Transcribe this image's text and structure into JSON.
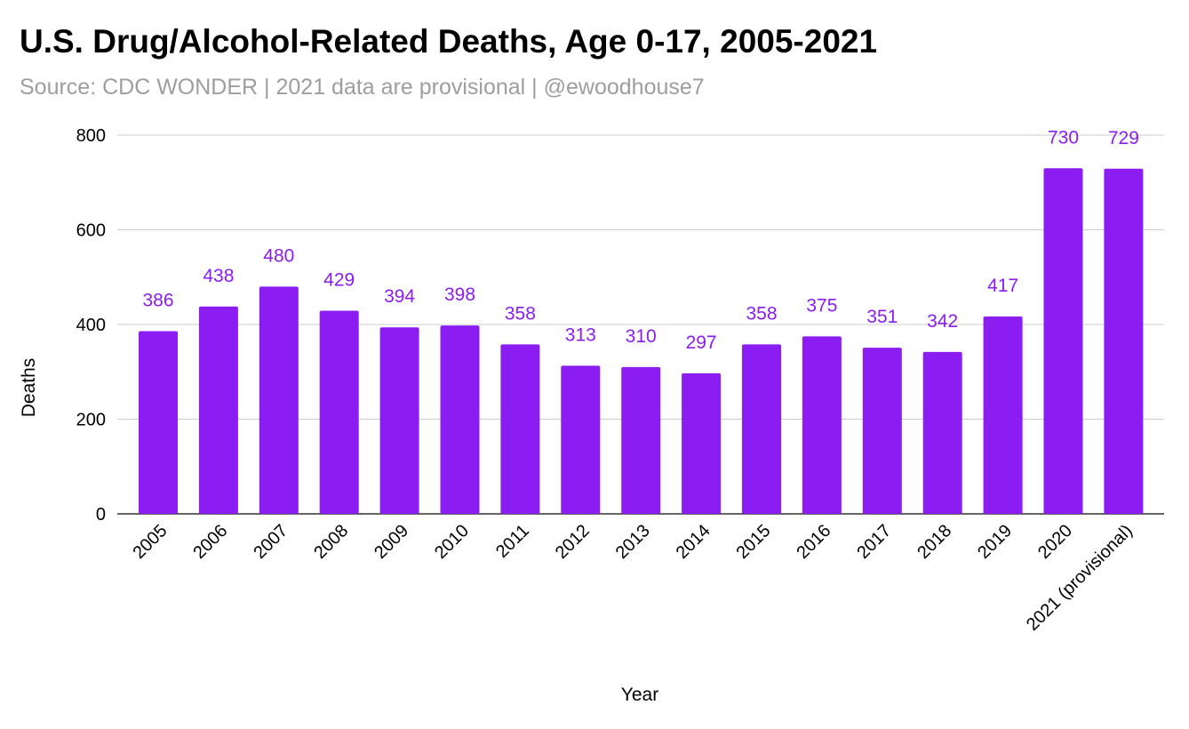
{
  "colors": {
    "bar": "#8b1cf2",
    "data_label": "#8b1cf2",
    "grid": "#cccccc",
    "baseline": "#333333",
    "title": "#000000",
    "subtitle": "#9e9e9e"
  },
  "chart_data": {
    "type": "bar",
    "title": "U.S. Drug/Alcohol-Related Deaths, Age 0-17, 2005-2021",
    "subtitle": "Source: CDC WONDER | 2021 data are provisional | @ewoodhouse7",
    "xlabel": "Year",
    "ylabel": "Deaths",
    "ylim": [
      0,
      800
    ],
    "yticks": [
      0,
      200,
      400,
      600,
      800
    ],
    "grid": true,
    "categories": [
      "2005",
      "2006",
      "2007",
      "2008",
      "2009",
      "2010",
      "2011",
      "2012",
      "2013",
      "2014",
      "2015",
      "2016",
      "2017",
      "2018",
      "2019",
      "2020",
      "2021 (provisional)"
    ],
    "values": [
      386,
      438,
      480,
      429,
      394,
      398,
      358,
      313,
      310,
      297,
      358,
      375,
      351,
      342,
      417,
      730,
      729
    ]
  }
}
